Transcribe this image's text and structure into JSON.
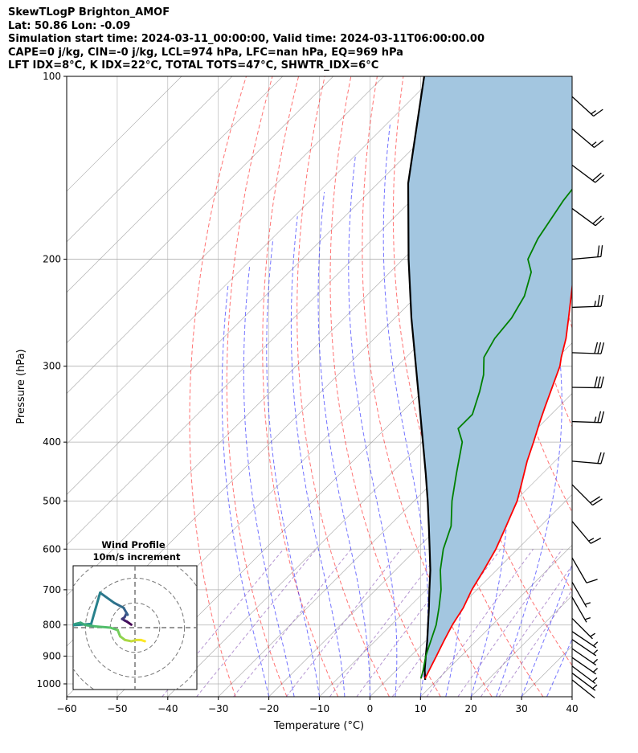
{
  "header": {
    "line1": "SkewTLogP Brighton_AMOF",
    "line2": "Lat: 50.86   Lon: -0.09",
    "line3": "Simulation start time: 2024-03-11_00:00:00, Valid time: 2024-03-11T06:00:00.00",
    "line4": "CAPE=0 j/kg, CIN=-0 j/kg, LCL=974 hPa, LFC=nan hPa, EQ=969 hPa",
    "line5": "LFT IDX=8°C, K IDX=22°C, TOTAL TOTS=47°C, SHWTR_IDX=6°C"
  },
  "colors": {
    "temperature": "#ff0000",
    "dewpoint": "#008000",
    "parcel": "#000000",
    "cin_fill": "#a3c6e0",
    "dry_adiabat": "#ff0000",
    "moist_adiabat": "#0000ff",
    "mixing_ratio": "#9467bd",
    "isotherm": "#808080"
  },
  "chart_data": [
    {
      "type": "line",
      "subtype": "skewt-logp",
      "xlabel": "Temperature (°C)",
      "ylabel": "Pressure (hPa)",
      "xlim": [
        -60,
        40
      ],
      "ylim": [
        1050,
        100
      ],
      "yscale": "log",
      "grid": true,
      "x_ticks": [
        "−60",
        "−50",
        "−40",
        "−30",
        "−20",
        "−10",
        "0",
        "10",
        "20",
        "30",
        "40"
      ],
      "y_ticks": [
        "1000",
        "900",
        "800",
        "700",
        "600",
        "500",
        "400",
        "300",
        "200",
        "100"
      ],
      "pressure_ticks": [
        1000,
        900,
        800,
        700,
        600,
        500,
        400,
        300,
        200,
        100
      ],
      "temperature_ticks": [
        -60,
        -50,
        -40,
        -30,
        -20,
        -10,
        0,
        10,
        20,
        30,
        40
      ],
      "series": [
        {
          "key": "temperature",
          "points": [
            [
              980,
              7.3
            ],
            [
              950,
              6.5
            ],
            [
              900,
              5.1
            ],
            [
              850,
              3.6
            ],
            [
              800,
              2.1
            ],
            [
              750,
              0.9
            ],
            [
              700,
              -1.0
            ],
            [
              650,
              -2.5
            ],
            [
              600,
              -4.3
            ],
            [
              550,
              -6.8
            ],
            [
              500,
              -9.6
            ],
            [
              470,
              -12.0
            ],
            [
              430,
              -15.5
            ],
            [
              400,
              -18.0
            ],
            [
              370,
              -20.8
            ],
            [
              350,
              -22.7
            ],
            [
              300,
              -27.8
            ],
            [
              290,
              -29.3
            ],
            [
              270,
              -32.1
            ],
            [
              250,
              -35.6
            ],
            [
              220,
              -41.5
            ],
            [
              200,
              -45.9
            ],
            [
              170,
              -52.0
            ],
            [
              150,
              -56.6
            ],
            [
              130,
              -60.1
            ],
            [
              115,
              -62.3
            ],
            [
              100,
              -63.8
            ]
          ]
        },
        {
          "key": "dewpoint",
          "points": [
            [
              980,
              6.5
            ],
            [
              950,
              5.3
            ],
            [
              900,
              3.0
            ],
            [
              850,
              1.0
            ],
            [
              800,
              -1.1
            ],
            [
              750,
              -3.9
            ],
            [
              700,
              -7.1
            ],
            [
              650,
              -11.1
            ],
            [
              600,
              -14.7
            ],
            [
              550,
              -17.7
            ],
            [
              500,
              -22.5
            ],
            [
              450,
              -27.1
            ],
            [
              400,
              -32.1
            ],
            [
              380,
              -35.6
            ],
            [
              360,
              -35.6
            ],
            [
              330,
              -38.7
            ],
            [
              310,
              -41.2
            ],
            [
              290,
              -44.6
            ],
            [
              270,
              -46.2
            ],
            [
              250,
              -46.9
            ],
            [
              230,
              -48.7
            ],
            [
              210,
              -52.1
            ],
            [
              200,
              -55.3
            ],
            [
              185,
              -57.4
            ],
            [
              160,
              -59.9
            ],
            [
              130,
              -62.2
            ],
            [
              100,
              -64.9
            ]
          ]
        },
        {
          "key": "parcel",
          "points": [
            [
              985,
              7.6
            ],
            [
              950,
              5.6
            ],
            [
              900,
              3.0
            ],
            [
              850,
              0.3
            ],
            [
              800,
              -2.7
            ],
            [
              750,
              -5.9
            ],
            [
              700,
              -9.4
            ],
            [
              650,
              -13.1
            ],
            [
              600,
              -17.4
            ],
            [
              550,
              -22.1
            ],
            [
              500,
              -27.3
            ],
            [
              450,
              -33.2
            ],
            [
              400,
              -39.9
            ],
            [
              350,
              -47.5
            ],
            [
              300,
              -56.3
            ],
            [
              250,
              -66.7
            ],
            [
              200,
              -78.9
            ],
            [
              150,
              -94.0
            ],
            [
              100,
              -112.0
            ]
          ]
        }
      ],
      "wind_barbs": [
        {
          "p": 985,
          "u": -1.5,
          "v": 1.2
        },
        {
          "p": 960,
          "u": -2.4,
          "v": 1.8
        },
        {
          "p": 935,
          "u": -3.2,
          "v": 2.4
        },
        {
          "p": 905,
          "u": -4.2,
          "v": 2.9
        },
        {
          "p": 875,
          "u": -4.8,
          "v": 3.3
        },
        {
          "p": 845,
          "u": -5.0,
          "v": 3.4
        },
        {
          "p": 820,
          "u": -5.2,
          "v": 3.5
        },
        {
          "p": 780,
          "u": -4.2,
          "v": 4.2
        },
        {
          "p": 720,
          "u": -3.4,
          "v": 5.9
        },
        {
          "p": 680,
          "u": -3.0,
          "v": 5.2
        },
        {
          "p": 620,
          "u": -4.6,
          "v": 8.0
        },
        {
          "p": 540,
          "u": -8.4,
          "v": 10.0
        },
        {
          "p": 470,
          "u": -14.1,
          "v": 14.1
        },
        {
          "p": 430,
          "u": -17.7,
          "v": 1.5
        },
        {
          "p": 370,
          "u": -26.0,
          "v": 0.9
        },
        {
          "p": 325,
          "u": -29.5,
          "v": 0.5
        },
        {
          "p": 285,
          "u": -31.5,
          "v": 1.1
        },
        {
          "p": 240,
          "u": -27.0,
          "v": -1.0
        },
        {
          "p": 200,
          "u": -19.0,
          "v": -1.7
        },
        {
          "p": 165,
          "u": -15.0,
          "v": 11.0
        },
        {
          "p": 140,
          "u": -16.0,
          "v": 12.0
        },
        {
          "p": 122,
          "u": -13.0,
          "v": 11.0
        },
        {
          "p": 108,
          "u": -11.0,
          "v": 10.0
        }
      ]
    },
    {
      "type": "line",
      "subtype": "hodograph",
      "title": "Wind Profile",
      "subtitle": "10m/s increment",
      "ring_increment": 10,
      "rings": [
        10,
        20,
        30
      ],
      "xlim": [
        -25,
        25
      ],
      "ylim": [
        -25,
        25
      ],
      "points": [
        [
          -1.5,
          1.2
        ],
        [
          -3.2,
          2.4
        ],
        [
          -4.2,
          2.9
        ],
        [
          -5.0,
          3.4
        ],
        [
          -5.2,
          3.5
        ],
        [
          -4.2,
          4.2
        ],
        [
          -3.4,
          5.9
        ],
        [
          -3.0,
          5.2
        ],
        [
          -4.6,
          8.0
        ],
        [
          -8.4,
          10.0
        ],
        [
          -14.1,
          14.1
        ],
        [
          -17.7,
          1.5
        ],
        [
          -26.0,
          0.9
        ],
        [
          -24.0,
          1.5
        ],
        [
          -22.0,
          2.0
        ],
        [
          -20.0,
          1.0
        ],
        [
          -16.0,
          0.5
        ],
        [
          -10.0,
          0.0
        ],
        [
          -7.0,
          -1.0
        ],
        [
          -6.0,
          -3.5
        ],
        [
          -4.0,
          -5.0
        ],
        [
          -1.5,
          -5.5
        ],
        [
          0.5,
          -5.0
        ],
        [
          2.5,
          -5.0
        ],
        [
          4.0,
          -5.5
        ]
      ]
    }
  ]
}
